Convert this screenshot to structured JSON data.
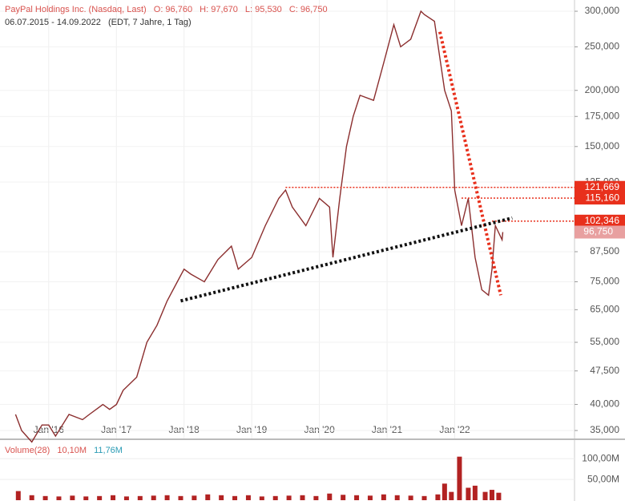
{
  "header": {
    "instrument": "PayPal Holdings Inc. (Nasdaq, Last)",
    "open": "O: 96,760",
    "high": "H: 97,670",
    "low": "L: 95,530",
    "close": "C: 96,750",
    "range": "06.07.2015 - 14.09.2022",
    "info": "(EDT, 7 Jahre, 1 Tag)"
  },
  "chart_data": [
    {
      "type": "line",
      "log_scale": true,
      "grid": true,
      "color": "#8b2e2e",
      "xlim": [
        2015.28,
        2023.77
      ],
      "xticks": [
        {
          "value": 2016,
          "label": "Jan '16"
        },
        {
          "value": 2017,
          "label": "Jan '17"
        },
        {
          "value": 2018,
          "label": "Jan '18"
        },
        {
          "value": 2019,
          "label": "Jan '19"
        },
        {
          "value": 2020,
          "label": "Jan '20"
        },
        {
          "value": 2021,
          "label": "Jan '21"
        },
        {
          "value": 2022,
          "label": "Jan '22"
        }
      ],
      "ylim": [
        33.6,
        317.8
      ],
      "yticks": [
        {
          "value": 300,
          "label": "300,000"
        },
        {
          "value": 250,
          "label": "250,000"
        },
        {
          "value": 200,
          "label": "200,000"
        },
        {
          "value": 175,
          "label": "175,000"
        },
        {
          "value": 150,
          "label": "150,000"
        },
        {
          "value": 125,
          "label": "125,000"
        },
        {
          "value": 87.5,
          "label": "87,500"
        },
        {
          "value": 75,
          "label": "75,000"
        },
        {
          "value": 65,
          "label": "65,000"
        },
        {
          "value": 55,
          "label": "55,000"
        },
        {
          "value": 47.5,
          "label": "47,500"
        },
        {
          "value": 40,
          "label": "40,000"
        },
        {
          "value": 35,
          "label": "35,000"
        }
      ],
      "series": [
        {
          "name": "PayPal Holdings Inc.",
          "color": "#8b2e2e",
          "x": [
            2015.51,
            2015.6,
            2015.75,
            2015.9,
            2016.0,
            2016.1,
            2016.3,
            2016.5,
            2016.6,
            2016.8,
            2016.9,
            2017.0,
            2017.1,
            2017.3,
            2017.45,
            2017.6,
            2017.75,
            2017.9,
            2018.0,
            2018.1,
            2018.3,
            2018.5,
            2018.7,
            2018.8,
            2019.0,
            2019.2,
            2019.4,
            2019.5,
            2019.6,
            2019.8,
            2020.0,
            2020.15,
            2020.2,
            2020.3,
            2020.4,
            2020.5,
            2020.6,
            2020.8,
            2020.95,
            2021.1,
            2021.2,
            2021.35,
            2021.5,
            2021.55,
            2021.7,
            2021.85,
            2021.95,
            2022.0,
            2022.1,
            2022.2,
            2022.3,
            2022.4,
            2022.5,
            2022.55,
            2022.6,
            2022.7,
            2022.71
          ],
          "values": [
            38,
            35,
            33,
            36,
            36,
            34,
            38,
            37,
            38,
            40,
            39,
            40,
            43,
            46,
            55,
            60,
            68,
            75,
            80,
            78,
            75,
            84,
            90,
            80,
            85,
            100,
            115,
            120,
            110,
            100,
            115,
            110,
            85,
            115,
            150,
            175,
            195,
            190,
            230,
            280,
            250,
            260,
            300,
            295,
            285,
            200,
            180,
            120,
            100,
            115,
            85,
            72,
            70,
            80,
            100,
            93,
            96.75
          ]
        }
      ],
      "current": {
        "value": 96.75,
        "label": "96,750"
      },
      "levels": [
        {
          "value": 121.669,
          "label": "121,669",
          "from": 2019.5
        },
        {
          "value": 115.16,
          "label": "115,160",
          "from": 2022.1
        },
        {
          "value": 102.346,
          "label": "102,346",
          "from": 2022.55
        }
      ],
      "trendlines": [
        {
          "color": "#e8301c",
          "x": [
            2021.78,
            2022.68
          ],
          "y": [
            270,
            70
          ]
        },
        {
          "color": "#111111",
          "x": [
            2017.95,
            2022.85
          ],
          "y": [
            68,
            104
          ]
        }
      ]
    },
    {
      "type": "bar",
      "legend": "Volume(28)",
      "value_text": "10,10M",
      "average_text": "11,76M",
      "xlim": [
        2015.28,
        2023.77
      ],
      "ylim": [
        0,
        145
      ],
      "yticks": [
        {
          "value": 100,
          "label": "100,00M"
        },
        {
          "value": 50,
          "label": "50,00M"
        }
      ],
      "series": [
        {
          "name": "Volume",
          "color": "#b22222",
          "x": [
            2015.55,
            2015.75,
            2015.95,
            2016.15,
            2016.35,
            2016.55,
            2016.75,
            2016.95,
            2017.15,
            2017.35,
            2017.55,
            2017.75,
            2017.95,
            2018.15,
            2018.35,
            2018.55,
            2018.75,
            2018.95,
            2019.15,
            2019.35,
            2019.55,
            2019.75,
            2019.95,
            2020.15,
            2020.35,
            2020.55,
            2020.75,
            2020.95,
            2021.15,
            2021.35,
            2021.55,
            2021.75,
            2021.85,
            2021.95,
            2022.07,
            2022.2,
            2022.3,
            2022.45,
            2022.55,
            2022.65
          ],
          "values": [
            22,
            12,
            10,
            9,
            11,
            9,
            10,
            12,
            9,
            10,
            11,
            12,
            10,
            11,
            14,
            12,
            10,
            12,
            9,
            10,
            11,
            12,
            10,
            16,
            13,
            12,
            11,
            14,
            12,
            11,
            10,
            14,
            40,
            20,
            105,
            30,
            35,
            20,
            25,
            18
          ]
        }
      ]
    }
  ]
}
